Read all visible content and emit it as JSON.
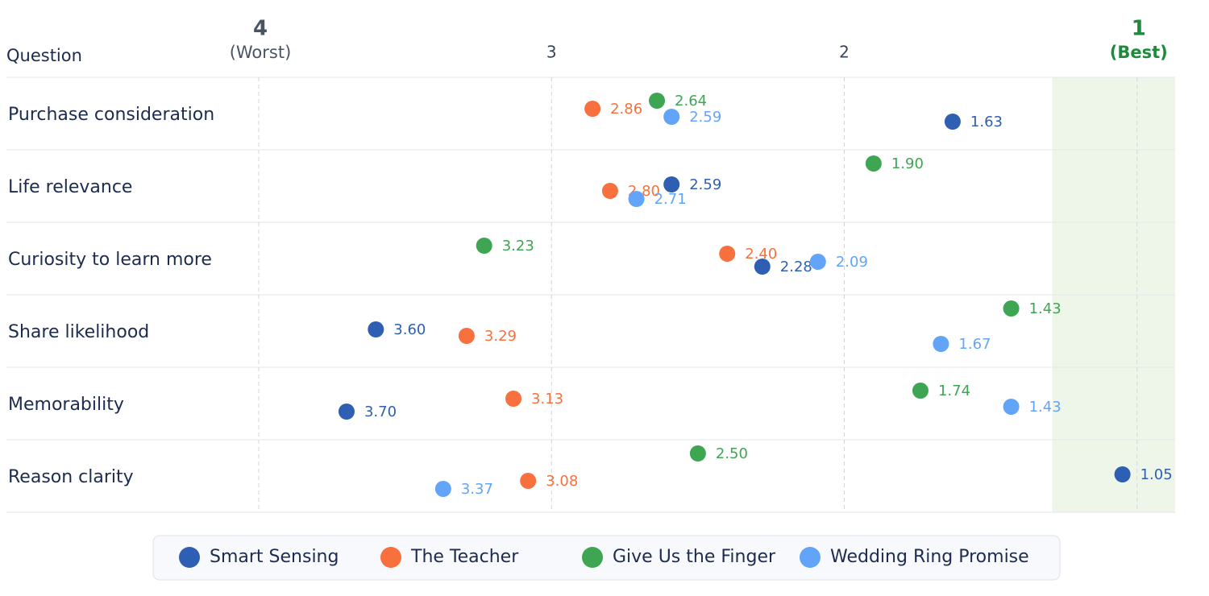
{
  "chart_data": {
    "type": "dot",
    "y_label": "Question",
    "worst_label": "(Worst)",
    "best_label": "(Best)",
    "categories": [
      "Purchase consideration",
      "Life relevance",
      "Curiosity to learn more",
      "Share likelihood",
      "Memorability",
      "Reason clarity"
    ],
    "xlim": [
      4,
      0.87
    ],
    "xticks": [
      4,
      3,
      2,
      1
    ],
    "grid": true,
    "highlight": {
      "from": 1.29,
      "to": 0.87,
      "color": "#eef6ea"
    },
    "legend": "bottom",
    "series": [
      {
        "name": "Smart Sensing",
        "color": "#2f5fb3",
        "values": [
          1.63,
          2.59,
          2.28,
          3.6,
          3.7,
          1.05
        ],
        "value_labels": [
          "1.63",
          "2.59",
          "2.28",
          "3.60",
          "3.70",
          "1.05"
        ]
      },
      {
        "name": "The Teacher",
        "color": "#f7703d",
        "values": [
          2.86,
          2.8,
          2.4,
          3.29,
          3.13,
          3.08
        ],
        "value_labels": [
          "2.86",
          "2.80",
          "2.40",
          "3.29",
          "3.13",
          "3.08"
        ]
      },
      {
        "name": "Give Us the Finger",
        "color": "#3ea652",
        "values": [
          2.64,
          1.9,
          3.23,
          1.43,
          1.74,
          2.5
        ],
        "value_labels": [
          "2.64",
          "1.90",
          "3.23",
          "1.43",
          "1.74",
          "2.50"
        ]
      },
      {
        "name": "Wedding Ring Promise",
        "color": "#62a4f7",
        "values": [
          2.59,
          2.71,
          2.09,
          1.67,
          1.43,
          3.37
        ],
        "value_labels": [
          "2.59",
          "2.71",
          "2.09",
          "1.67",
          "1.43",
          "3.37"
        ]
      }
    ]
  }
}
